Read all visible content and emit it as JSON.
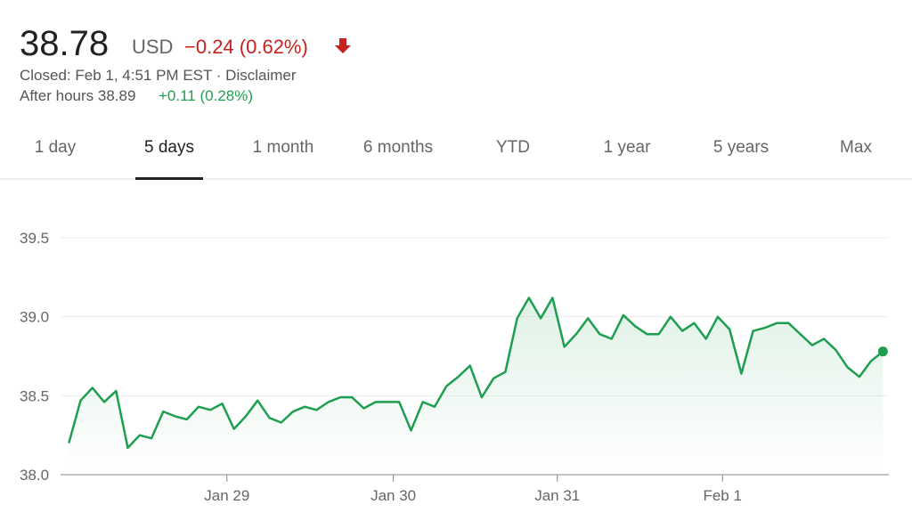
{
  "header": {
    "price": "38.78",
    "currency": "USD",
    "change": "−0.24 (0.62%)",
    "status": "Closed: Feb 1, 4:51 PM EST · Disclaimer",
    "after_hours": "After hours 38.89",
    "after_hours_change": "+0.11 (0.28%)"
  },
  "tabs": [
    "1 day",
    "5 days",
    "1 month",
    "6 months",
    "YTD",
    "1 year",
    "5 years",
    "Max"
  ],
  "chart_data": {
    "type": "line",
    "color": "#1e9e50",
    "grid": true,
    "values": [
      38.2,
      38.47,
      38.55,
      38.46,
      38.53,
      38.17,
      38.25,
      38.23,
      38.4,
      38.37,
      38.35,
      38.43,
      38.41,
      38.45,
      38.29,
      38.37,
      38.47,
      38.36,
      38.33,
      38.4,
      38.43,
      38.41,
      38.46,
      38.49,
      38.49,
      38.42,
      38.46,
      38.46,
      38.46,
      38.28,
      38.46,
      38.43,
      38.56,
      38.62,
      38.69,
      38.49,
      38.61,
      38.65,
      38.99,
      39.12,
      38.99,
      39.12,
      38.81,
      38.89,
      38.99,
      38.89,
      38.86,
      39.01,
      38.94,
      38.89,
      38.89,
      39.0,
      38.91,
      38.96,
      38.86,
      39.0,
      38.92,
      38.64,
      38.91,
      38.93,
      38.96,
      38.96,
      38.89,
      38.82,
      38.86,
      38.79,
      38.68,
      38.62,
      38.72,
      38.78
    ],
    "xlim": [
      -0.7,
      69.5
    ],
    "xticks": [
      {
        "value": 13.4,
        "label": "Jan 29"
      },
      {
        "value": 27.5,
        "label": "Jan 30"
      },
      {
        "value": 41.4,
        "label": "Jan 31"
      },
      {
        "value": 55.4,
        "label": "Feb 1"
      }
    ],
    "ylim": [
      38,
      39.5
    ],
    "yticks": [
      {
        "value": 38,
        "label": "38.0"
      },
      38.5,
      {
        "value": 39,
        "label": "39.0"
      },
      39.5
    ]
  }
}
